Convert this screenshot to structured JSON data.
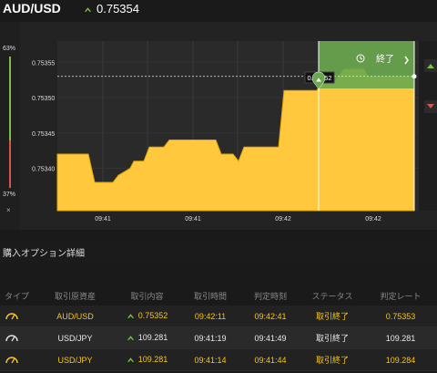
{
  "header": {
    "pair": "AUD/USD",
    "price": "0.75354"
  },
  "gauge": {
    "top_pct": "63%",
    "bottom_pct": "37%",
    "close": "×"
  },
  "chart": {
    "y_ticks": [
      "0.75355",
      "0.75350",
      "0.75345",
      "0.75340"
    ],
    "x_ticks": [
      "09:41",
      "09:41",
      "09:42",
      "09:42"
    ],
    "marker_price": "0.75352",
    "end_label": "終了",
    "series": [
      0.75342,
      0.75342,
      0.75342,
      0.75338,
      0.75338,
      0.75339,
      0.7534,
      0.75341,
      0.75343,
      0.75344,
      0.75344,
      0.75344,
      0.75344,
      0.75342,
      0.75344,
      0.75344,
      0.75352,
      0.75352,
      0.75352,
      0.75355,
      0.75355,
      0.75354,
      0.75354
    ]
  },
  "section_title": "購入オプション詳細",
  "table": {
    "headers": [
      "タイプ",
      "取引原資産",
      "取引内容",
      "取引時間",
      "判定時刻",
      "ステータス",
      "判定レート"
    ],
    "rows": [
      {
        "asset": "AUD/USD",
        "content": "0.75352",
        "time": "09:42:11",
        "judge": "09:42:41",
        "status": "取引終了",
        "rate": "0.75353",
        "color": "yellow"
      },
      {
        "asset": "USD/JPY",
        "content": "109.281",
        "time": "09:41:19",
        "judge": "09:41:49",
        "status": "取引終了",
        "rate": "109.281",
        "color": "white"
      },
      {
        "asset": "USD/JPY",
        "content": "109.281",
        "time": "09:41:14",
        "judge": "09:41:44",
        "status": "取引終了",
        "rate": "109.284",
        "color": "yellow"
      }
    ]
  }
}
